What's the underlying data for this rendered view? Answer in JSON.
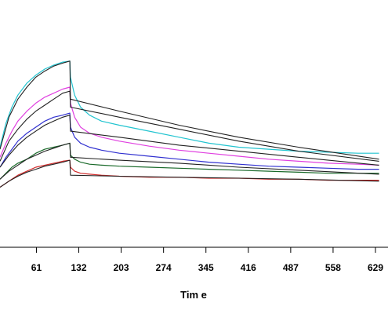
{
  "chart_data": {
    "type": "line",
    "xlabel": "Tim e",
    "ylabel": "",
    "xlim": [
      0,
      650
    ],
    "ylim": [
      0,
      1
    ],
    "xticks": [
      61,
      132,
      203,
      274,
      345,
      416,
      487,
      558,
      629
    ],
    "grid": false,
    "series": [
      {
        "color": "#22c4d0",
        "x": [
          0,
          10,
          20,
          30,
          45,
          60,
          75,
          90,
          105,
          117,
          118,
          125,
          135,
          150,
          170,
          200,
          250,
          300,
          350,
          400,
          450,
          500,
          550,
          600,
          635
        ],
        "y": [
          0.5,
          0.62,
          0.7,
          0.76,
          0.82,
          0.86,
          0.89,
          0.91,
          0.925,
          0.93,
          0.85,
          0.76,
          0.7,
          0.66,
          0.63,
          0.61,
          0.58,
          0.55,
          0.52,
          0.5,
          0.49,
          0.48,
          0.475,
          0.47,
          0.47
        ]
      },
      {
        "color": "#e040e0",
        "x": [
          0,
          10,
          20,
          30,
          45,
          60,
          75,
          90,
          105,
          117,
          118,
          125,
          135,
          150,
          170,
          200,
          250,
          300,
          350,
          400,
          450,
          500,
          550,
          600,
          635
        ],
        "y": [
          0.45,
          0.52,
          0.58,
          0.63,
          0.68,
          0.72,
          0.75,
          0.77,
          0.79,
          0.8,
          0.72,
          0.65,
          0.6,
          0.57,
          0.55,
          0.53,
          0.505,
          0.485,
          0.47,
          0.455,
          0.44,
          0.43,
          0.42,
          0.415,
          0.41
        ]
      },
      {
        "color": "#3030d0",
        "x": [
          0,
          10,
          20,
          30,
          45,
          60,
          75,
          90,
          105,
          117,
          118,
          125,
          135,
          150,
          170,
          200,
          250,
          300,
          350,
          400,
          450,
          500,
          550,
          600,
          635
        ],
        "y": [
          0.4,
          0.45,
          0.49,
          0.53,
          0.57,
          0.6,
          0.63,
          0.65,
          0.66,
          0.67,
          0.6,
          0.55,
          0.52,
          0.5,
          0.485,
          0.47,
          0.455,
          0.44,
          0.425,
          0.415,
          0.405,
          0.4,
          0.395,
          0.39,
          0.39
        ]
      },
      {
        "color": "#1a6a2a",
        "x": [
          0,
          10,
          20,
          30,
          45,
          60,
          75,
          90,
          105,
          117,
          118,
          125,
          135,
          150,
          170,
          200,
          250,
          300,
          350,
          400,
          450,
          500,
          550,
          600,
          635
        ],
        "y": [
          0.34,
          0.37,
          0.4,
          0.42,
          0.44,
          0.47,
          0.49,
          0.5,
          0.51,
          0.52,
          0.46,
          0.44,
          0.425,
          0.415,
          0.41,
          0.405,
          0.4,
          0.395,
          0.39,
          0.385,
          0.38,
          0.375,
          0.37,
          0.37,
          0.37
        ]
      },
      {
        "color": "#d02828",
        "x": [
          0,
          10,
          20,
          30,
          45,
          60,
          75,
          90,
          105,
          117,
          118,
          125,
          135,
          150,
          170,
          200,
          250,
          300,
          350,
          400,
          450,
          500,
          550,
          600,
          635
        ],
        "y": [
          0.3,
          0.32,
          0.34,
          0.36,
          0.38,
          0.4,
          0.41,
          0.42,
          0.43,
          0.435,
          0.4,
          0.38,
          0.37,
          0.365,
          0.36,
          0.355,
          0.35,
          0.35,
          0.345,
          0.345,
          0.34,
          0.34,
          0.335,
          0.335,
          0.335
        ]
      },
      {
        "color": "#222222",
        "x": [
          0,
          15,
          30,
          45,
          60,
          75,
          90,
          105,
          117,
          118,
          200,
          300,
          400,
          500,
          635
        ],
        "y": [
          0.49,
          0.65,
          0.74,
          0.8,
          0.85,
          0.88,
          0.905,
          0.92,
          0.93,
          0.74,
          0.68,
          0.61,
          0.55,
          0.5,
          0.44
        ]
      },
      {
        "color": "#222222",
        "x": [
          0,
          15,
          30,
          45,
          60,
          75,
          90,
          105,
          117,
          118,
          200,
          300,
          400,
          500,
          635
        ],
        "y": [
          0.43,
          0.53,
          0.59,
          0.64,
          0.68,
          0.71,
          0.74,
          0.77,
          0.78,
          0.7,
          0.65,
          0.59,
          0.53,
          0.48,
          0.43
        ]
      },
      {
        "color": "#222222",
        "x": [
          0,
          15,
          30,
          45,
          60,
          75,
          90,
          105,
          117,
          118,
          200,
          300,
          400,
          500,
          635
        ],
        "y": [
          0.4,
          0.46,
          0.51,
          0.55,
          0.58,
          0.61,
          0.63,
          0.65,
          0.66,
          0.58,
          0.55,
          0.51,
          0.48,
          0.45,
          0.41
        ]
      },
      {
        "color": "#222222",
        "x": [
          0,
          15,
          30,
          45,
          60,
          75,
          90,
          105,
          117,
          118,
          200,
          300,
          400,
          500,
          635
        ],
        "y": [
          0.34,
          0.38,
          0.41,
          0.44,
          0.46,
          0.48,
          0.495,
          0.51,
          0.52,
          0.45,
          0.435,
          0.42,
          0.4,
          0.385,
          0.365
        ]
      },
      {
        "color": "#222222",
        "x": [
          0,
          15,
          30,
          45,
          60,
          75,
          90,
          105,
          117,
          118,
          200,
          300,
          400,
          500,
          635
        ],
        "y": [
          0.3,
          0.33,
          0.355,
          0.375,
          0.39,
          0.405,
          0.415,
          0.425,
          0.435,
          0.36,
          0.355,
          0.35,
          0.345,
          0.34,
          0.33
        ]
      }
    ]
  }
}
